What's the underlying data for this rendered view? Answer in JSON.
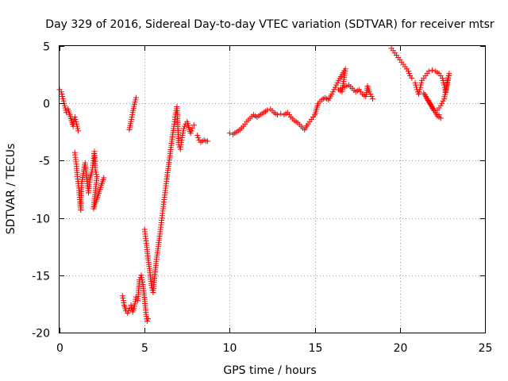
{
  "chart_data": {
    "type": "scatter",
    "title": "Day 329 of 2016, Sidereal Day-to-day VTEC variation (SDTVAR) for receiver mtsr",
    "xlabel": "GPS time / hours",
    "ylabel": "SDTVAR / TECUs",
    "xlim": [
      0,
      25
    ],
    "ylim": [
      -20,
      5
    ],
    "xticks": [
      0,
      5,
      10,
      15,
      20,
      25
    ],
    "yticks": [
      5,
      0,
      -5,
      -10,
      -15,
      -20
    ],
    "grid": true,
    "marker": "+",
    "colors": {
      "series": "#ff0000",
      "axis": "#000000",
      "grid": "#a0a0a0"
    },
    "series": [
      {
        "name": "SDTVAR",
        "segments": [
          [
            [
              0.0,
              1.2
            ],
            [
              0.1,
              1.0
            ],
            [
              0.2,
              0.4
            ],
            [
              0.3,
              -0.2
            ],
            [
              0.4,
              -0.8
            ],
            [
              0.5,
              -0.5
            ],
            [
              0.6,
              -1.0
            ],
            [
              0.7,
              -1.5
            ],
            [
              0.8,
              -2.0
            ],
            [
              0.9,
              -1.2
            ],
            [
              1.0,
              -1.8
            ],
            [
              1.1,
              -2.4
            ]
          ],
          [
            [
              0.9,
              -4.3
            ],
            [
              1.0,
              -5.5
            ],
            [
              1.05,
              -6.4
            ],
            [
              1.15,
              -7.6
            ],
            [
              1.2,
              -8.6
            ],
            [
              1.25,
              -9.3
            ],
            [
              1.3,
              -7.0
            ],
            [
              1.4,
              -6.1
            ],
            [
              1.5,
              -5.2
            ],
            [
              1.6,
              -6.6
            ],
            [
              1.7,
              -7.8
            ],
            [
              1.8,
              -6.5
            ],
            [
              1.9,
              -6.0
            ],
            [
              2.0,
              -5.0
            ],
            [
              2.05,
              -4.2
            ],
            [
              2.1,
              -5.8
            ],
            [
              2.2,
              -6.4
            ],
            [
              2.0,
              -9.2
            ],
            [
              2.6,
              -6.5
            ]
          ],
          [
            [
              4.1,
              -2.3
            ],
            [
              4.2,
              -1.6
            ],
            [
              4.3,
              -0.8
            ],
            [
              4.4,
              -0.1
            ],
            [
              4.5,
              0.5
            ]
          ],
          [
            [
              3.7,
              -16.8
            ],
            [
              3.8,
              -17.6
            ],
            [
              3.9,
              -18.1
            ],
            [
              4.0,
              -18.3
            ],
            [
              4.1,
              -17.9
            ],
            [
              4.2,
              -17.6
            ],
            [
              4.3,
              -18.2
            ],
            [
              4.4,
              -17.7
            ],
            [
              4.5,
              -16.9
            ],
            [
              4.6,
              -17.2
            ],
            [
              4.7,
              -15.4
            ],
            [
              4.8,
              -15.0
            ],
            [
              4.9,
              -15.8
            ],
            [
              5.0,
              -17.1
            ],
            [
              5.1,
              -18.6
            ],
            [
              5.15,
              -19.0
            ],
            [
              5.2,
              -18.8
            ]
          ],
          [
            [
              5.0,
              -11.0
            ],
            [
              5.1,
              -12.2
            ],
            [
              5.2,
              -13.5
            ],
            [
              5.3,
              -14.6
            ],
            [
              5.4,
              -15.9
            ],
            [
              5.5,
              -16.5
            ],
            [
              5.6,
              -14.9
            ],
            [
              5.7,
              -13.6
            ],
            [
              5.8,
              -12.5
            ],
            [
              5.9,
              -11.4
            ],
            [
              6.0,
              -10.2
            ],
            [
              6.1,
              -9.0
            ],
            [
              6.2,
              -7.8
            ],
            [
              6.3,
              -6.6
            ],
            [
              6.4,
              -5.5
            ],
            [
              6.5,
              -4.4
            ],
            [
              6.6,
              -3.3
            ],
            [
              6.7,
              -2.2
            ],
            [
              6.8,
              -1.2
            ],
            [
              6.9,
              -0.3
            ],
            [
              7.0,
              -3.6
            ],
            [
              7.1,
              -4.0
            ],
            [
              7.2,
              -3.0
            ],
            [
              7.3,
              -2.2
            ],
            [
              7.4,
              -1.8
            ],
            [
              7.5,
              -1.6
            ],
            [
              7.6,
              -2.1
            ],
            [
              7.7,
              -2.6
            ],
            [
              7.8,
              -2.2
            ],
            [
              7.9,
              -1.9
            ]
          ],
          [
            [
              8.1,
              -2.8
            ],
            [
              8.2,
              -3.2
            ],
            [
              8.3,
              -3.4
            ],
            [
              8.4,
              -3.3
            ],
            [
              8.5,
              -3.2
            ],
            [
              8.6,
              -3.3
            ],
            [
              8.7,
              -3.3
            ]
          ],
          [
            [
              10.0,
              -2.6
            ],
            [
              10.2,
              -2.7
            ],
            [
              10.4,
              -2.5
            ],
            [
              10.6,
              -2.3
            ],
            [
              10.8,
              -2.0
            ],
            [
              11.0,
              -1.6
            ],
            [
              11.2,
              -1.3
            ],
            [
              11.4,
              -1.0
            ],
            [
              11.6,
              -1.2
            ],
            [
              11.8,
              -1.0
            ],
            [
              12.0,
              -0.8
            ],
            [
              12.2,
              -0.6
            ],
            [
              12.4,
              -0.5
            ],
            [
              12.6,
              -0.8
            ],
            [
              12.8,
              -1.0
            ],
            [
              13.0,
              -0.9
            ],
            [
              13.2,
              -1.0
            ],
            [
              13.4,
              -0.8
            ],
            [
              13.6,
              -1.2
            ],
            [
              13.8,
              -1.5
            ],
            [
              14.0,
              -1.7
            ],
            [
              14.2,
              -2.0
            ],
            [
              14.4,
              -2.3
            ],
            [
              14.6,
              -1.8
            ],
            [
              14.8,
              -1.4
            ],
            [
              15.0,
              -1.0
            ],
            [
              15.1,
              -0.5
            ],
            [
              15.2,
              0.0
            ],
            [
              15.4,
              0.3
            ],
            [
              15.6,
              0.5
            ],
            [
              15.8,
              0.3
            ],
            [
              16.0,
              0.8
            ],
            [
              16.2,
              1.4
            ],
            [
              16.4,
              2.0
            ],
            [
              16.6,
              2.5
            ],
            [
              16.8,
              3.0
            ],
            [
              16.6,
              1.0
            ],
            [
              16.4,
              1.2
            ],
            [
              17.0,
              1.6
            ],
            [
              17.2,
              1.3
            ],
            [
              17.4,
              1.0
            ],
            [
              17.6,
              1.2
            ],
            [
              17.8,
              0.8
            ],
            [
              18.0,
              0.6
            ],
            [
              18.1,
              1.5
            ],
            [
              18.2,
              1.0
            ],
            [
              18.4,
              0.4
            ]
          ],
          [
            [
              19.5,
              4.8
            ],
            [
              19.7,
              4.4
            ],
            [
              19.9,
              4.0
            ],
            [
              20.1,
              3.6
            ],
            [
              20.3,
              3.2
            ],
            [
              20.5,
              2.8
            ],
            [
              20.6,
              2.4
            ],
            [
              20.7,
              2.2
            ]
          ],
          [
            [
              20.9,
              1.8
            ],
            [
              21.0,
              1.2
            ],
            [
              21.1,
              0.8
            ],
            [
              21.2,
              1.4
            ],
            [
              21.3,
              2.0
            ],
            [
              21.5,
              2.4
            ],
            [
              21.7,
              2.8
            ],
            [
              21.9,
              2.9
            ],
            [
              22.1,
              2.8
            ],
            [
              22.3,
              2.6
            ],
            [
              22.5,
              2.2
            ],
            [
              22.6,
              1.6
            ],
            [
              22.7,
              1.0
            ],
            [
              22.8,
              2.0
            ],
            [
              22.9,
              2.6
            ],
            [
              22.6,
              0.4
            ],
            [
              22.4,
              -0.2
            ],
            [
              22.2,
              -0.6
            ],
            [
              22.0,
              -0.6
            ],
            [
              21.8,
              -0.1
            ],
            [
              21.6,
              0.4
            ],
            [
              21.4,
              0.9
            ],
            [
              22.2,
              -1.1
            ],
            [
              22.4,
              -1.3
            ],
            [
              22.3,
              -1.0
            ]
          ]
        ]
      }
    ]
  }
}
